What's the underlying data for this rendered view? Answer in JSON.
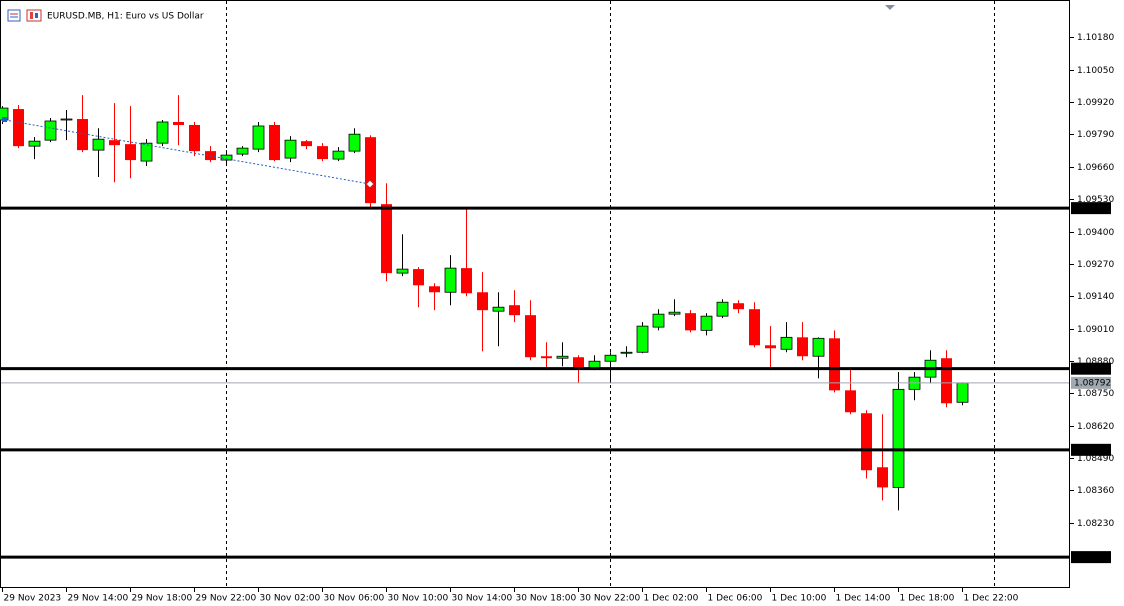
{
  "chart_data": {
    "type": "candlestick",
    "title": "EURUSD.MB, H1:  Euro vs US Dollar",
    "categories": [
      "29 Nov 2023",
      null,
      null,
      null,
      "29 Nov 14:00",
      null,
      null,
      null,
      "29 Nov 18:00",
      null,
      null,
      null,
      "29 Nov 22:00",
      null,
      null,
      null,
      "30 Nov 02:00",
      null,
      null,
      null,
      "30 Nov 06:00",
      null,
      null,
      null,
      "30 Nov 10:00",
      null,
      null,
      null,
      "30 Nov 14:00",
      null,
      null,
      null,
      "30 Nov 18:00",
      null,
      null,
      null,
      "30 Nov 22:00",
      null,
      null,
      null,
      "1 Dec 02:00",
      null,
      null,
      null,
      "1 Dec 06:00",
      null,
      null,
      null,
      "1 Dec 10:00",
      null,
      null,
      null,
      "1 Dec 14:00",
      null,
      null,
      null,
      "1 Dec 18:00",
      null,
      null,
      null,
      "1 Dec 22:00"
    ],
    "open": [
      1.09848,
      1.09892,
      1.09743,
      1.09767,
      1.09848,
      1.09852,
      1.09727,
      1.09767,
      1.09751,
      1.09683,
      1.09755,
      1.0984,
      1.09828,
      1.09723,
      1.09687,
      1.09711,
      1.09731,
      1.09828,
      1.09695,
      1.09763,
      1.09743,
      1.09691,
      1.09723,
      1.09779,
      1.0951,
      1.09233,
      1.09249,
      1.0918,
      1.09156,
      1.09253,
      1.09156,
      1.0908,
      1.09104,
      1.09064,
      1.08899,
      1.08891,
      1.08895,
      1.08851,
      1.08879,
      1.08911,
      1.08915,
      1.09016,
      1.09068,
      1.09072,
      1.09003,
      1.0906,
      1.09112,
      1.09088,
      1.08943,
      1.08927,
      1.08975,
      1.08899,
      1.08971,
      1.08762,
      1.0867,
      1.08453,
      1.08372,
      1.08766,
      1.08815,
      1.08891,
      1.08714
    ],
    "high": [
      1.09904,
      1.09908,
      1.09779,
      1.09856,
      1.09888,
      1.09948,
      1.09815,
      1.09916,
      1.09904,
      1.09771,
      1.09848,
      1.09948,
      1.0984,
      1.09743,
      1.09727,
      1.09743,
      1.0984,
      1.0984,
      1.09783,
      1.09767,
      1.09755,
      1.09739,
      1.09815,
      1.09787,
      1.09594,
      1.09389,
      1.09257,
      1.09192,
      1.09305,
      1.09494,
      1.09237,
      1.09156,
      1.09164,
      1.09124,
      1.08955,
      1.08955,
      1.08903,
      1.08903,
      1.08915,
      1.08939,
      1.09036,
      1.09088,
      1.09128,
      1.09084,
      1.09072,
      1.09128,
      1.09124,
      1.09116,
      1.0902,
      1.09036,
      1.09036,
      1.08975,
      1.09003,
      1.08843,
      1.08682,
      1.08666,
      1.08835,
      1.08835,
      1.08923,
      1.08923,
      1.08794
    ],
    "low": [
      1.09832,
      1.09735,
      1.09691,
      1.09759,
      1.09767,
      1.09719,
      1.09619,
      1.09598,
      1.09614,
      1.09663,
      1.09743,
      1.09747,
      1.09703,
      1.09679,
      1.09675,
      1.09703,
      1.09719,
      1.09683,
      1.09679,
      1.09731,
      1.09683,
      1.09683,
      1.09715,
      1.09494,
      1.092,
      1.09221,
      1.09096,
      1.09084,
      1.09104,
      1.0914,
      1.08919,
      1.08939,
      1.09036,
      1.08883,
      1.08843,
      1.08859,
      1.0879,
      1.08843,
      1.0879,
      1.08895,
      1.08911,
      1.09003,
      1.0906,
      1.08995,
      1.08983,
      1.09052,
      1.09072,
      1.08935,
      1.08843,
      1.08915,
      1.08883,
      1.0881,
      1.08754,
      1.08666,
      1.08408,
      1.0832,
      1.0828,
      1.08722,
      1.0879,
      1.08694,
      1.08702
    ],
    "close": [
      1.09896,
      1.09743,
      1.09763,
      1.09844,
      1.09852,
      1.09727,
      1.09771,
      1.09747,
      1.09687,
      1.09755,
      1.0984,
      1.09828,
      1.09723,
      1.09687,
      1.09707,
      1.09735,
      1.09824,
      1.09687,
      1.09767,
      1.09743,
      1.09691,
      1.09723,
      1.09791,
      1.09514,
      1.09233,
      1.09249,
      1.09184,
      1.09156,
      1.09253,
      1.09152,
      1.09084,
      1.09096,
      1.09064,
      1.08895,
      1.08891,
      1.08899,
      1.08851,
      1.08879,
      1.08903,
      1.08915,
      1.0902,
      1.09068,
      1.09076,
      1.09003,
      1.0906,
      1.09116,
      1.09088,
      1.08943,
      1.08931,
      1.08975,
      1.08899,
      1.08971,
      1.08762,
      1.08674,
      1.08441,
      1.08372,
      1.08766,
      1.08815,
      1.08883,
      1.0871,
      1.08792
    ],
    "up_color": "#00ff00",
    "down_color": "#ff0000",
    "ylim": [
      1.0798,
      1.1031
    ],
    "yticks": [
      {
        "value": 1.1018,
        "label": "1.10180"
      },
      {
        "value": 1.1005,
        "label": "1.10050"
      },
      {
        "value": 1.0992,
        "label": "1.09920"
      },
      {
        "value": 1.0979,
        "label": "1.09790"
      },
      {
        "value": 1.0966,
        "label": "1.09660"
      },
      {
        "value": 1.0953,
        "label": "1.09530"
      },
      {
        "value": 1.094,
        "label": "1.09400"
      },
      {
        "value": 1.0927,
        "label": "1.09270"
      },
      {
        "value": 1.0914,
        "label": "1.09140"
      },
      {
        "value": 1.0901,
        "label": "1.09010"
      },
      {
        "value": 1.0888,
        "label": "1.08880"
      },
      {
        "value": 1.0875,
        "label": "1.08750"
      },
      {
        "value": 1.0862,
        "label": "1.08620"
      },
      {
        "value": 1.0849,
        "label": "1.08490"
      },
      {
        "value": 1.0836,
        "label": "1.08360"
      },
      {
        "value": 1.0823,
        "label": "1.08230"
      }
    ],
    "hlines": [
      1.09494,
      1.08849,
      1.08523,
      1.08092
    ],
    "current_price": 1.08792,
    "grid": false
  }
}
